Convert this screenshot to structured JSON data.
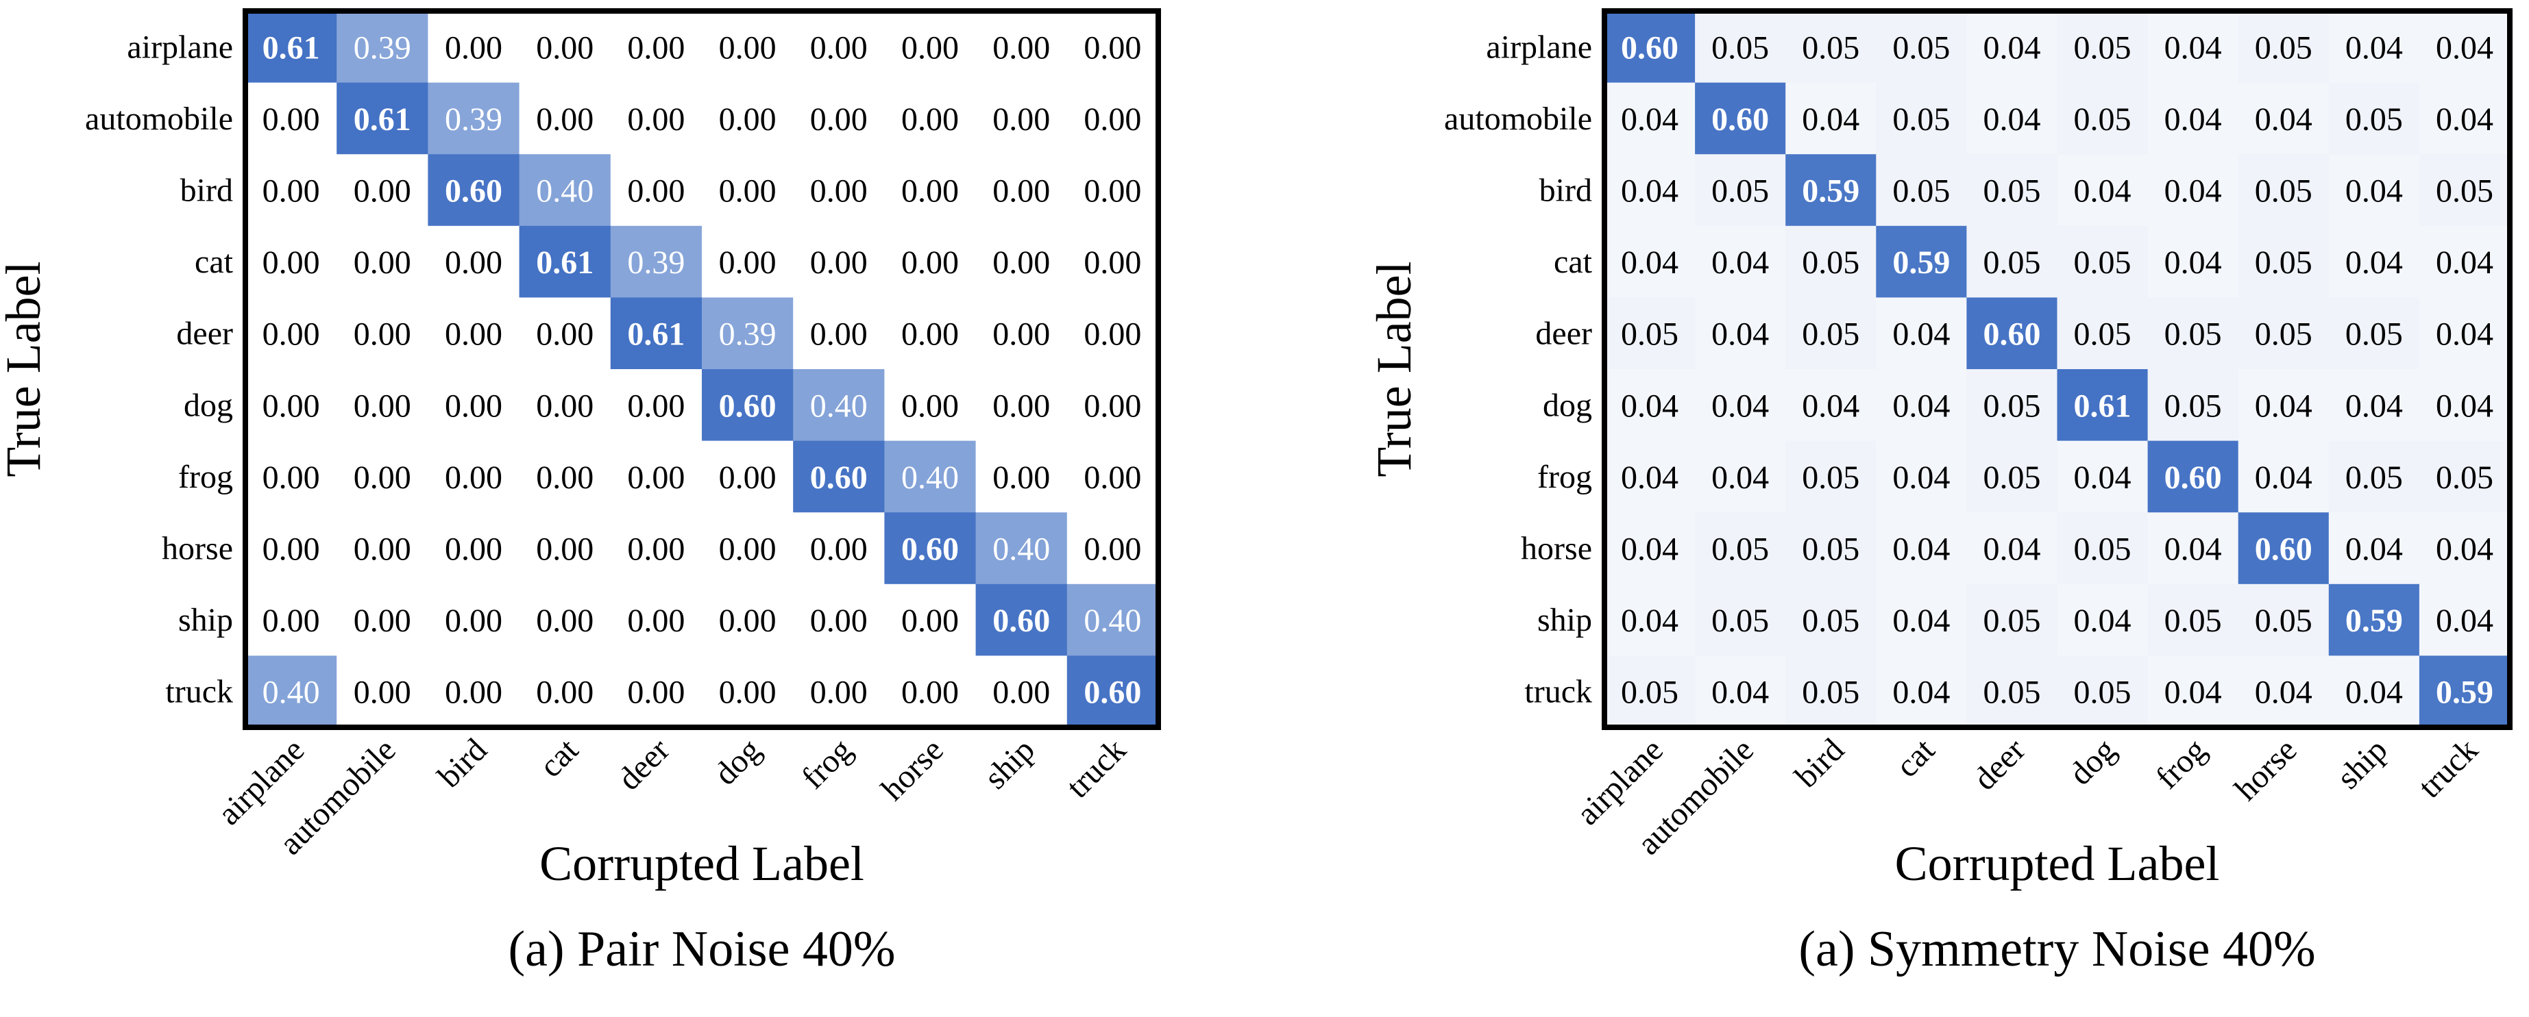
{
  "chart_data": [
    {
      "type": "heatmap",
      "title": "",
      "caption": "(a) Pair Noise 40%",
      "xlabel": "Corrupted Label",
      "ylabel": "True Label",
      "rows": [
        "airplane",
        "automobile",
        "bird",
        "cat",
        "deer",
        "dog",
        "frog",
        "horse",
        "ship",
        "truck"
      ],
      "cols": [
        "airplane",
        "automobile",
        "bird",
        "cat",
        "deer",
        "dog",
        "frog",
        "horse",
        "ship",
        "truck"
      ],
      "values": [
        [
          0.61,
          0.39,
          0.0,
          0.0,
          0.0,
          0.0,
          0.0,
          0.0,
          0.0,
          0.0
        ],
        [
          0.0,
          0.61,
          0.39,
          0.0,
          0.0,
          0.0,
          0.0,
          0.0,
          0.0,
          0.0
        ],
        [
          0.0,
          0.0,
          0.6,
          0.4,
          0.0,
          0.0,
          0.0,
          0.0,
          0.0,
          0.0
        ],
        [
          0.0,
          0.0,
          0.0,
          0.61,
          0.39,
          0.0,
          0.0,
          0.0,
          0.0,
          0.0
        ],
        [
          0.0,
          0.0,
          0.0,
          0.0,
          0.61,
          0.39,
          0.0,
          0.0,
          0.0,
          0.0
        ],
        [
          0.0,
          0.0,
          0.0,
          0.0,
          0.0,
          0.6,
          0.4,
          0.0,
          0.0,
          0.0
        ],
        [
          0.0,
          0.0,
          0.0,
          0.0,
          0.0,
          0.0,
          0.6,
          0.4,
          0.0,
          0.0
        ],
        [
          0.0,
          0.0,
          0.0,
          0.0,
          0.0,
          0.0,
          0.0,
          0.6,
          0.4,
          0.0
        ],
        [
          0.0,
          0.0,
          0.0,
          0.0,
          0.0,
          0.0,
          0.0,
          0.0,
          0.6,
          0.4
        ],
        [
          0.4,
          0.0,
          0.0,
          0.0,
          0.0,
          0.0,
          0.0,
          0.0,
          0.0,
          0.6
        ]
      ],
      "color_low": "#ffffff",
      "color_high": "#4472c4",
      "value_range": [
        0,
        0.61
      ],
      "bold_diagonal": true
    },
    {
      "type": "heatmap",
      "title": "",
      "caption": "(a) Symmetry Noise 40%",
      "xlabel": "Corrupted Label",
      "ylabel": "True Label",
      "rows": [
        "airplane",
        "automobile",
        "bird",
        "cat",
        "deer",
        "dog",
        "frog",
        "horse",
        "ship",
        "truck"
      ],
      "cols": [
        "airplane",
        "automobile",
        "bird",
        "cat",
        "deer",
        "dog",
        "frog",
        "horse",
        "ship",
        "truck"
      ],
      "values": [
        [
          0.6,
          0.05,
          0.05,
          0.05,
          0.04,
          0.05,
          0.04,
          0.05,
          0.04,
          0.04
        ],
        [
          0.04,
          0.6,
          0.04,
          0.05,
          0.04,
          0.05,
          0.04,
          0.04,
          0.05,
          0.04
        ],
        [
          0.04,
          0.05,
          0.59,
          0.05,
          0.05,
          0.04,
          0.04,
          0.05,
          0.04,
          0.05
        ],
        [
          0.04,
          0.04,
          0.05,
          0.59,
          0.05,
          0.05,
          0.04,
          0.05,
          0.04,
          0.04
        ],
        [
          0.05,
          0.04,
          0.05,
          0.04,
          0.6,
          0.05,
          0.05,
          0.05,
          0.05,
          0.04
        ],
        [
          0.04,
          0.04,
          0.04,
          0.04,
          0.05,
          0.61,
          0.05,
          0.04,
          0.04,
          0.04
        ],
        [
          0.04,
          0.04,
          0.05,
          0.04,
          0.05,
          0.04,
          0.6,
          0.04,
          0.05,
          0.05
        ],
        [
          0.04,
          0.05,
          0.05,
          0.04,
          0.04,
          0.05,
          0.04,
          0.6,
          0.04,
          0.04
        ],
        [
          0.04,
          0.05,
          0.05,
          0.04,
          0.05,
          0.04,
          0.05,
          0.05,
          0.59,
          0.04
        ],
        [
          0.05,
          0.04,
          0.05,
          0.04,
          0.05,
          0.05,
          0.04,
          0.04,
          0.04,
          0.59
        ]
      ],
      "color_low": "#ffffff",
      "color_high": "#4472c4",
      "value_range": [
        0,
        0.61
      ],
      "bold_diagonal": true
    }
  ]
}
